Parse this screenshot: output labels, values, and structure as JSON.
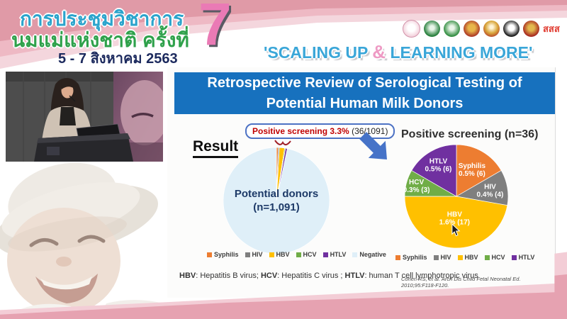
{
  "banner": {
    "conference_line1": "การประชุมวิชาการ",
    "conference_line2": "นมแม่แห่งชาติ ครั้งที่",
    "date": "5 - 7 สิงหาคม 2563",
    "edition": "7",
    "tagline_part1": "'SCALING UP ",
    "tagline_amp": "&",
    "tagline_part2": " LEARNING MORE'",
    "sss_text": "สสส",
    "logos": [
      "breastfeeding-foundation-logo",
      "health-ministry-logo",
      "health-department-logo",
      "royal-emblem-logo",
      "royal-crest-logo",
      "black-seal-logo",
      "red-seal-logo",
      "sss-thaihealth-logo"
    ]
  },
  "slide": {
    "title_line1": "Retrospective Review of Serological Testing of",
    "title_line2": "Potential Human Milk Donors",
    "result_label": "Result",
    "callout_highlight": "Positive screening 3.3%",
    "callout_detail": " (36/1091)",
    "right_pie_title": "Positive screening (n=36)",
    "footnote": [
      {
        "abbr": "HBV",
        "text": ": Hepatitis B virus; "
      },
      {
        "abbr": "HCV",
        "text": ": Hepatitis C virus ; "
      },
      {
        "abbr": "HTLV",
        "text": ": human T cell lymphotropic virus"
      }
    ],
    "citation": "Cohen RS, et al. Arch Dis Child Fetal Neonatal Ed. 2010;95:F118-F120."
  },
  "chart_data": [
    {
      "type": "pie",
      "title": "Potential donors (n=1,091)",
      "center_label_line1": "Potential donors",
      "center_label_line2": "(n=1,091)",
      "total": 1091,
      "legend_position": "bottom",
      "slices": [
        {
          "label": "Syphilis",
          "value": 6,
          "color": "#ED7D31"
        },
        {
          "label": "HIV",
          "value": 4,
          "color": "#7F7F7F"
        },
        {
          "label": "HBV",
          "value": 17,
          "color": "#FFC000"
        },
        {
          "label": "HCV",
          "value": 3,
          "color": "#70AD47"
        },
        {
          "label": "HTLV",
          "value": 6,
          "color": "#7030A0"
        },
        {
          "label": "Negative",
          "value": 1055,
          "color": "#DFEFF8"
        }
      ]
    },
    {
      "type": "pie",
      "title": "Positive screening (n=36)",
      "total": 36,
      "legend_position": "bottom",
      "slices": [
        {
          "label": "Syphilis",
          "value": 6,
          "pct": "0.5%",
          "color": "#ED7D31"
        },
        {
          "label": "HIV",
          "value": 4,
          "pct": "0.4%",
          "color": "#7F7F7F"
        },
        {
          "label": "HBV",
          "value": 17,
          "pct": "1.6%",
          "color": "#FFC000"
        },
        {
          "label": "HCV",
          "value": 3,
          "pct": "0.3%",
          "color": "#70AD47"
        },
        {
          "label": "HTLV",
          "value": 6,
          "pct": "0.5%",
          "color": "#7030A0"
        }
      ]
    }
  ],
  "colors": {
    "title_bar": "#1771BE",
    "arrow": "#4673C8",
    "callout_highlight": "#C00000",
    "banner_pink_dark": "#E09AA7",
    "tagline_blue": "#3AA6D8",
    "negative_slice": "#DFEFF8"
  }
}
